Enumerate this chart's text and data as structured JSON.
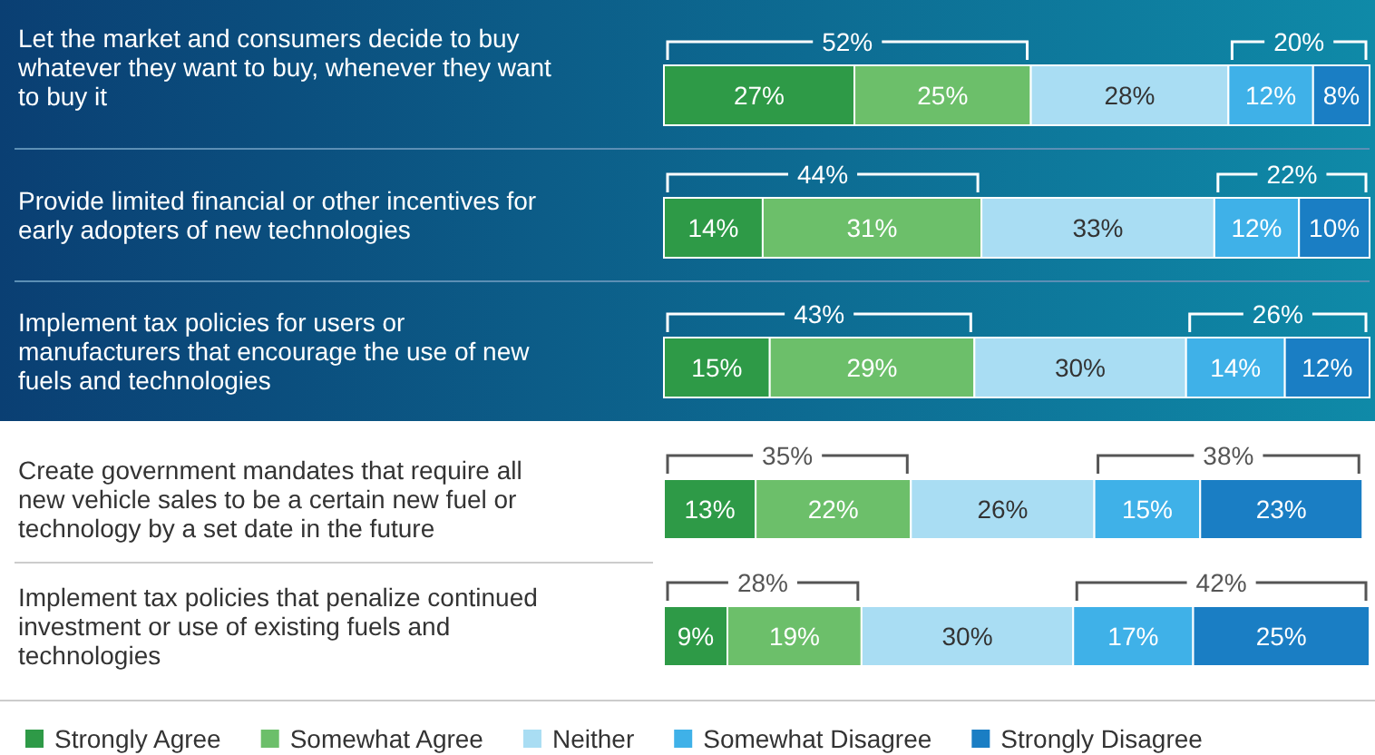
{
  "chart_data": {
    "type": "bar",
    "orientation": "horizontal",
    "stacked": true,
    "legend": "bottom",
    "xlim": [
      0,
      100
    ],
    "tick_labels": false,
    "categories": [
      "Let the market and consumers decide to buy whatever they want to buy, whenever they want to buy it",
      "Provide limited financial or other incentives for early adopters of new technologies",
      "Implement tax policies for users or manufacturers that encourage the use of new fuels and technologies",
      "Create government mandates that require all new vehicle sales to be a certain new fuel or technology by a set date in the future",
      "Implement tax policies that penalize continued investment or use of existing fuels and technologies"
    ],
    "series": [
      {
        "name": "Strongly Agree",
        "color": "#2e9a47",
        "values": [
          27,
          14,
          15,
          13,
          9
        ],
        "value_labels": [
          "27%",
          "14%",
          "15%",
          "13%",
          "9%"
        ]
      },
      {
        "name": "Somewhat Agree",
        "color": "#6cbf6a",
        "values": [
          25,
          31,
          29,
          22,
          19
        ],
        "value_labels": [
          "25%",
          "31%",
          "29%",
          "22%",
          "19%"
        ]
      },
      {
        "name": "Neither",
        "color": "#a9ddf3",
        "values": [
          28,
          33,
          30,
          26,
          30
        ],
        "value_labels": [
          "28%",
          "33%",
          "30%",
          "26%",
          "30%"
        ]
      },
      {
        "name": "Somewhat Disagree",
        "color": "#3fb1e8",
        "values": [
          12,
          12,
          14,
          15,
          17
        ],
        "value_labels": [
          "12%",
          "12%",
          "14%",
          "15%",
          "17%"
        ]
      },
      {
        "name": "Strongly Disagree",
        "color": "#1a7ec4",
        "values": [
          8,
          10,
          12,
          23,
          25
        ],
        "value_labels": [
          "8%",
          "10%",
          "12%",
          "23%",
          "25%"
        ]
      }
    ],
    "annotations": [
      "52%",
      "20%",
      "44%",
      "22%",
      "43%",
      "26%",
      "35%",
      "38%",
      "28%",
      "42%"
    ]
  }
}
